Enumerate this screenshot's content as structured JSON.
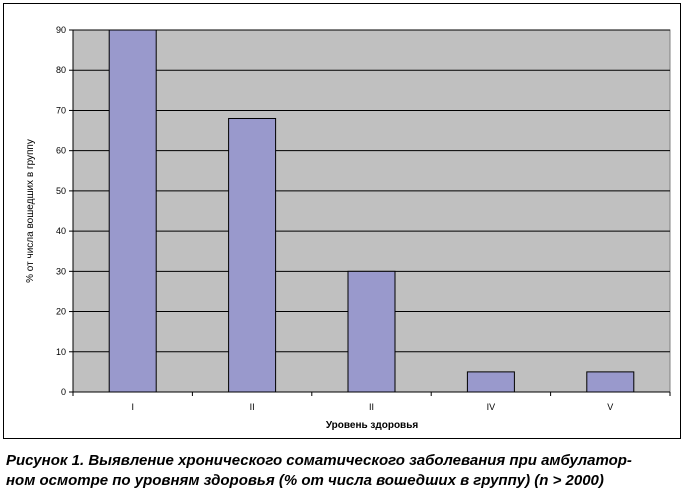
{
  "chart_data": {
    "type": "bar",
    "categories": [
      "I",
      "II",
      "II",
      "IV",
      "V"
    ],
    "values": [
      90,
      68,
      30,
      5,
      5
    ],
    "title": "",
    "xlabel": "Уровень здоровья",
    "ylabel": "% от числа вошедших в группу",
    "ylim": [
      0,
      90
    ],
    "yticks": [
      0,
      10,
      20,
      30,
      40,
      50,
      60,
      70,
      80,
      90
    ],
    "grid": true,
    "legend": "none",
    "colors": {
      "bar": "#9999cc",
      "plot_background": "#c0c0c0",
      "gridline": "#000000"
    }
  },
  "caption": {
    "line1": "Рисунок 1. Выявление хронического соматического заболевания при амбулатор-",
    "line2": "ном осмотре по уровням здоровья (% от числа вошедших в группу) (n > 2000)"
  }
}
